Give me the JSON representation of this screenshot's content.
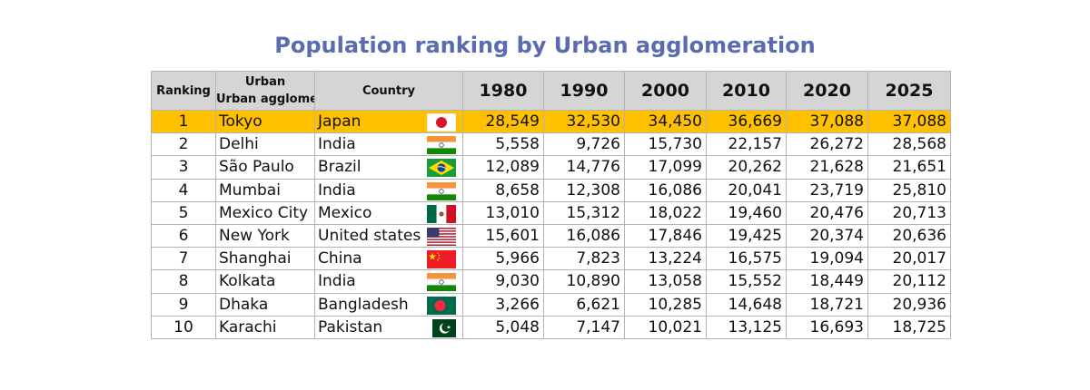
{
  "chart_data": {
    "type": "table",
    "title": "Population ranking by Urban agglomeration",
    "columns": [
      "Ranking",
      "Urban agglomeratio",
      "Country",
      "1980",
      "1990",
      "2000",
      "2010",
      "2020",
      "2025"
    ],
    "highlight_color": "#ffc000",
    "title_color": "#5a6bb0",
    "rows": [
      {
        "rank": "1",
        "city": "Tokyo",
        "country": "Japan",
        "flag": "japan-flag-icon",
        "values": [
          "28,549",
          "32,530",
          "34,450",
          "36,669",
          "37,088",
          "37,088"
        ],
        "highlight": true
      },
      {
        "rank": "2",
        "city": "Delhi",
        "country": "India",
        "flag": "india-flag-icon",
        "values": [
          "5,558",
          "9,726",
          "15,730",
          "22,157",
          "26,272",
          "28,568"
        ]
      },
      {
        "rank": "3",
        "city": "São Paulo",
        "country": "Brazil",
        "flag": "brazil-flag-icon",
        "values": [
          "12,089",
          "14,776",
          "17,099",
          "20,262",
          "21,628",
          "21,651"
        ]
      },
      {
        "rank": "4",
        "city": "Mumbai",
        "country": "India",
        "flag": "india-flag-icon",
        "values": [
          "8,658",
          "12,308",
          "16,086",
          "20,041",
          "23,719",
          "25,810"
        ]
      },
      {
        "rank": "5",
        "city": "Mexico City",
        "country": "Mexico",
        "flag": "mexico-flag-icon",
        "values": [
          "13,010",
          "15,312",
          "18,022",
          "19,460",
          "20,476",
          "20,713"
        ]
      },
      {
        "rank": "6",
        "city": "New York",
        "country": "United states",
        "flag": "usa-flag-icon",
        "values": [
          "15,601",
          "16,086",
          "17,846",
          "19,425",
          "20,374",
          "20,636"
        ]
      },
      {
        "rank": "7",
        "city": "Shanghai",
        "country": "China",
        "flag": "china-flag-icon",
        "values": [
          "5,966",
          "7,823",
          "13,224",
          "16,575",
          "19,094",
          "20,017"
        ]
      },
      {
        "rank": "8",
        "city": "Kolkata",
        "country": "India",
        "flag": "india-flag-icon",
        "values": [
          "9,030",
          "10,890",
          "13,058",
          "15,552",
          "18,449",
          "20,112"
        ]
      },
      {
        "rank": "9",
        "city": "Dhaka",
        "country": "Bangladesh",
        "flag": "bangladesh-flag-icon",
        "values": [
          "3,266",
          "6,621",
          "10,285",
          "14,648",
          "18,721",
          "20,936"
        ]
      },
      {
        "rank": "10",
        "city": "Karachi",
        "country": "Pakistan",
        "flag": "pakistan-flag-icon",
        "values": [
          "5,048",
          "7,147",
          "10,021",
          "13,125",
          "16,693",
          "18,725"
        ]
      }
    ]
  }
}
